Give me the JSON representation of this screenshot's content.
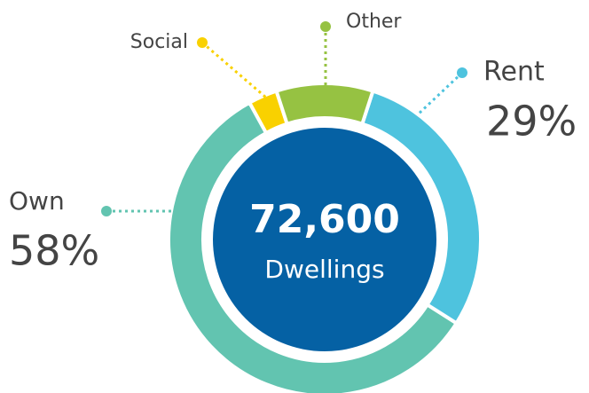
{
  "chart_data": {
    "type": "donut",
    "categories": [
      "Other",
      "Rent",
      "Own",
      "Social"
    ],
    "values": [
      10,
      29,
      58,
      3
    ],
    "value_labels": [
      null,
      "29%",
      "58%",
      null
    ],
    "colors": [
      "#96c242",
      "#4ec3de",
      "#62c4b0",
      "#f9d100"
    ],
    "center_label": "72,600",
    "center_caption": "Dwellings"
  }
}
